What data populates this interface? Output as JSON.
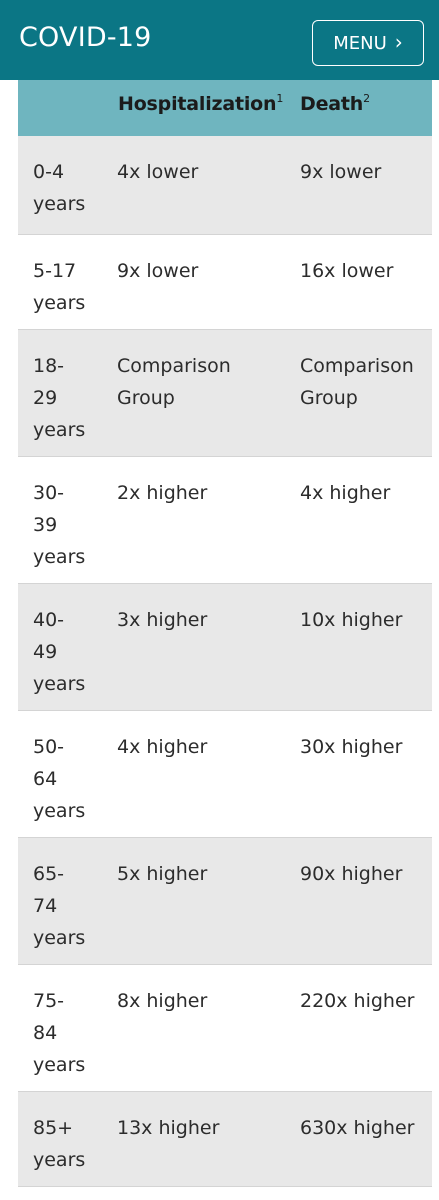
{
  "header": {
    "title": "COVID-19",
    "menu_label": "MENU"
  },
  "table": {
    "columns": {
      "hospitalization": "Hospitalization",
      "hospitalization_sup": "1",
      "death": "Death",
      "death_sup": "2"
    },
    "rows": [
      {
        "age_lines": [
          "0-4",
          "years"
        ],
        "hosp_lines": [
          "4x lower"
        ],
        "death_lines": [
          "9x lower"
        ]
      },
      {
        "age_lines": [
          "5-17",
          "years"
        ],
        "hosp_lines": [
          "9x lower"
        ],
        "death_lines": [
          "16x lower"
        ]
      },
      {
        "age_lines": [
          "18-",
          "29",
          "years"
        ],
        "hosp_lines": [
          "Comparison",
          "Group"
        ],
        "death_lines": [
          "Comparison",
          "Group"
        ]
      },
      {
        "age_lines": [
          "30-",
          "39",
          "years"
        ],
        "hosp_lines": [
          "2x higher"
        ],
        "death_lines": [
          "4x higher"
        ]
      },
      {
        "age_lines": [
          "40-",
          "49",
          "years"
        ],
        "hosp_lines": [
          "3x higher"
        ],
        "death_lines": [
          "10x higher"
        ]
      },
      {
        "age_lines": [
          "50-",
          "64",
          "years"
        ],
        "hosp_lines": [
          "4x higher"
        ],
        "death_lines": [
          "30x higher"
        ]
      },
      {
        "age_lines": [
          "65-",
          "74",
          "years"
        ],
        "hosp_lines": [
          "5x higher"
        ],
        "death_lines": [
          "90x higher"
        ]
      },
      {
        "age_lines": [
          "75-",
          "84",
          "years"
        ],
        "hosp_lines": [
          "8x higher"
        ],
        "death_lines": [
          "220x higher"
        ]
      },
      {
        "age_lines": [
          "85+",
          "years"
        ],
        "hosp_lines": [
          "13x higher"
        ],
        "death_lines": [
          "630x higher"
        ]
      }
    ]
  },
  "colors": {
    "header_bg": "#0b7685",
    "table_head_bg": "#6fb5bf",
    "row_shade": "#e8e8e8",
    "row_white": "#ffffff"
  }
}
